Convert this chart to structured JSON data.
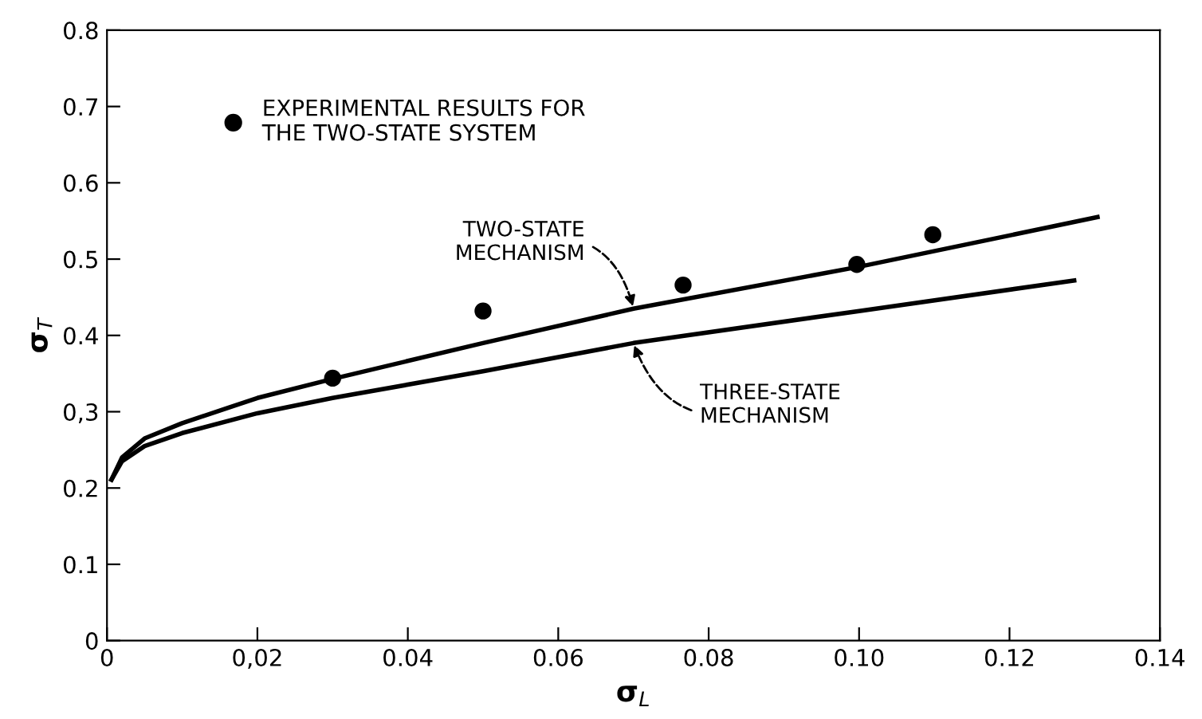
{
  "chart_data": {
    "type": "line",
    "xlabel": "σ$_{L}$",
    "ylabel": "σ$_{T}$",
    "xlim": [
      0,
      0.14
    ],
    "ylim": [
      0,
      0.8
    ],
    "xticks": [
      0,
      {
        "value": 0.02,
        "label": "0,02"
      },
      {
        "value": 0.04,
        "label": "0.04"
      },
      {
        "value": 0.06,
        "label": "0.06"
      },
      {
        "value": 0.08,
        "label": "0.08"
      },
      {
        "value": 0.1,
        "label": "0.10"
      },
      {
        "value": 0.12,
        "label": "0.12"
      },
      {
        "value": 0.14,
        "label": "0.14"
      }
    ],
    "yticks": [
      0,
      0.1,
      0.2,
      {
        "value": 0.3,
        "label": "0,3"
      },
      0.4,
      0.5,
      0.6,
      0.7,
      0.8
    ],
    "grid": false,
    "legend": "top left",
    "line_style": "solid",
    "annotations": [
      {
        "text": "TWO-STATE\nMECHANISM",
        "x": 0.07,
        "y": 0.435
      },
      {
        "text": "THREE-STATE\nMECHANISM",
        "x": 0.07,
        "y": 0.39
      }
    ],
    "series": [
      {
        "color": "#000000",
        "x": [
          0.0006,
          0.002,
          0.005,
          0.01,
          0.02,
          0.03,
          0.05,
          0.07,
          0.1,
          0.1317
        ],
        "values": [
          0.211,
          0.24,
          0.265,
          0.285,
          0.318,
          0.343,
          0.39,
          0.435,
          0.49,
          0.555
        ]
      },
      {
        "color": "#000000",
        "x": [
          0.0006,
          0.002,
          0.005,
          0.01,
          0.02,
          0.03,
          0.05,
          0.07,
          0.1,
          0.1286
        ],
        "values": [
          0.211,
          0.235,
          0.255,
          0.272,
          0.298,
          0.318,
          0.353,
          0.39,
          0.432,
          0.472
        ]
      },
      {
        "name": "EXPERIMENTAL RESULTS FOR\nTHE TWO-STATE SYSTEM",
        "type": "scatter",
        "color": "#000000",
        "marker": "circle",
        "x": [
          0.03,
          0.05,
          0.0766,
          0.0997,
          0.1098
        ],
        "values": [
          0.344,
          0.432,
          0.466,
          0.493,
          0.532
        ]
      }
    ]
  }
}
